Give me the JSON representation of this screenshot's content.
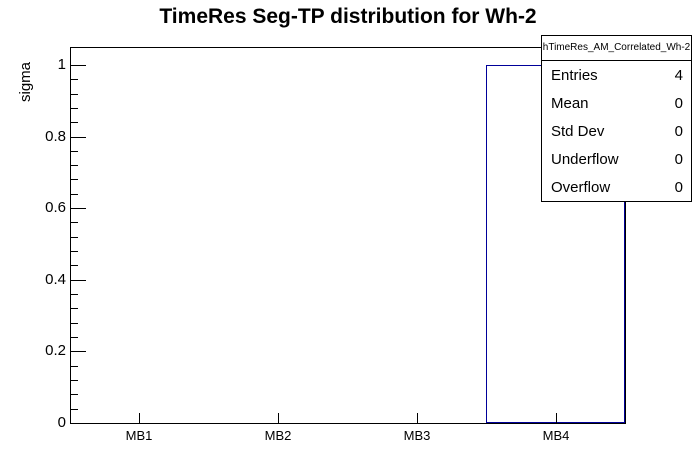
{
  "chart_data": {
    "type": "bar",
    "title": "TimeRes Seg-TP distribution for Wh-2",
    "ylabel": "sigma",
    "xlabel": "",
    "categories": [
      "MB1",
      "MB2",
      "MB3",
      "MB4"
    ],
    "values": [
      0,
      0,
      0,
      1
    ],
    "ylim": [
      0,
      1.05
    ],
    "y_ticks": [
      0,
      0.2,
      0.4,
      0.6,
      0.8,
      1
    ],
    "y_tick_labels": [
      "0",
      "0.2",
      "0.4",
      "0.6",
      "0.8",
      "1"
    ],
    "y_minor_tick_step": 0.04,
    "grid": false,
    "legend_position": "none",
    "bar_outline_color": "#000099",
    "frame_color": "#000000",
    "background_color": "#ffffff"
  },
  "stats_box": {
    "title": "hTimeRes_AM_Correlated_Wh-2",
    "rows": [
      {
        "label": "Entries",
        "value": "4"
      },
      {
        "label": "Mean",
        "value": "0"
      },
      {
        "label": "Std Dev",
        "value": "0"
      },
      {
        "label": "Underflow",
        "value": "0"
      },
      {
        "label": "Overflow",
        "value": "0"
      }
    ]
  }
}
